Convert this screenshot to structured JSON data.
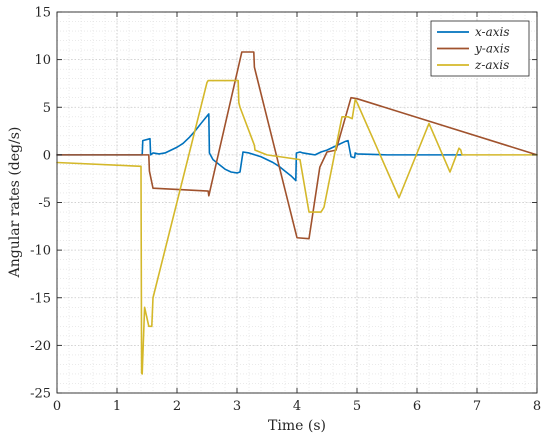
{
  "chart_data": {
    "type": "line",
    "xlabel": "Time (s)",
    "ylabel": "Angular rates (deg/s)",
    "xlim": [
      0,
      8
    ],
    "ylim": [
      -25,
      15
    ],
    "xticks": [
      0,
      1,
      2,
      3,
      4,
      5,
      6,
      7,
      8
    ],
    "yticks": [
      -25,
      -20,
      -15,
      -10,
      -5,
      0,
      5,
      10,
      15
    ],
    "grid": true,
    "minor_grid": true,
    "legend_position": "top-right",
    "series": [
      {
        "name": "x-axis",
        "color": "#0072BD",
        "x": [
          0,
          1.42,
          1.43,
          1.55,
          1.56,
          1.6,
          1.7,
          1.8,
          1.9,
          2.0,
          2.1,
          2.2,
          2.3,
          2.4,
          2.53,
          2.54,
          2.6,
          2.7,
          2.8,
          2.9,
          3.0,
          3.05,
          3.1,
          3.2,
          3.3,
          3.4,
          3.5,
          3.6,
          3.7,
          3.8,
          3.9,
          3.98,
          3.99,
          4.05,
          4.1,
          4.2,
          4.3,
          4.4,
          4.5,
          4.6,
          4.7,
          4.8,
          4.85,
          4.9,
          4.96,
          4.97,
          5.0,
          5.5,
          5.7,
          6.0,
          6.5,
          6.75
        ],
        "y": [
          0,
          0,
          1.5,
          1.7,
          0,
          0.2,
          0.1,
          0.2,
          0.5,
          0.8,
          1.2,
          1.8,
          2.5,
          3.3,
          4.3,
          0.2,
          -0.5,
          -1.0,
          -1.5,
          -1.8,
          -1.9,
          -1.8,
          0.3,
          0.2,
          0.0,
          -0.2,
          -0.5,
          -0.8,
          -1.2,
          -1.7,
          -2.2,
          -2.7,
          0.2,
          0.3,
          0.2,
          0.1,
          0.0,
          0.3,
          0.5,
          0.8,
          1.1,
          1.4,
          1.5,
          -0.2,
          -0.3,
          0.2,
          0.1,
          0.0,
          0.0,
          0.0,
          0.0,
          0.0
        ]
      },
      {
        "name": "y-axis",
        "color": "#A0522D",
        "x": [
          0,
          1.53,
          1.54,
          1.6,
          2.52,
          2.53,
          3.08,
          3.28,
          3.29,
          4.0,
          4.2,
          4.38,
          4.5,
          4.65,
          4.9,
          5.0,
          8
        ],
        "y": [
          0,
          0,
          -1.7,
          -3.5,
          -3.8,
          -4.3,
          10.8,
          10.8,
          9.2,
          -8.7,
          -8.8,
          -1.3,
          0.3,
          0.5,
          6.0,
          5.9,
          0
        ]
      },
      {
        "name": "z-axis",
        "color": "#D4B82A",
        "x": [
          0,
          1.4,
          1.41,
          1.42,
          1.46,
          1.53,
          1.58,
          1.6,
          2.5,
          2.52,
          3.02,
          3.03,
          3.05,
          3.29,
          3.3,
          3.5,
          4.05,
          4.2,
          4.4,
          4.45,
          4.75,
          4.85,
          4.92,
          4.97,
          5.0,
          5.7,
          6.2,
          6.55,
          6.7,
          6.73,
          6.75,
          8
        ],
        "y": [
          -0.8,
          -1.2,
          -22.9,
          -23.0,
          -16.0,
          -18.0,
          -18.0,
          -15.0,
          7.6,
          7.8,
          7.8,
          5.5,
          5.0,
          1.0,
          0.5,
          0.0,
          -0.5,
          -6.0,
          -6.0,
          -5.5,
          4.0,
          4.0,
          3.8,
          5.8,
          5.5,
          -4.5,
          3.3,
          -1.8,
          0.7,
          0.5,
          0.0,
          0.0
        ]
      }
    ]
  }
}
